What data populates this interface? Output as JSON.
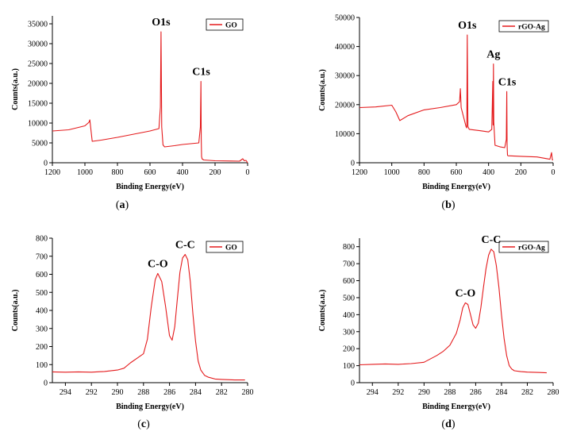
{
  "panels": [
    {
      "caption": "(a)",
      "caption_letter": "a"
    },
    {
      "caption": "(b)",
      "caption_letter": "b"
    },
    {
      "caption": "(c)",
      "caption_letter": "c"
    },
    {
      "caption": "(d)",
      "caption_letter": "d"
    }
  ],
  "colors": {
    "line": "#e41a1c",
    "axis": "#000000"
  },
  "chart_data": [
    {
      "type": "line",
      "xlabel": "Binding Energy(eV)",
      "ylabel": "Counts(a.u.)",
      "xlim": [
        1200,
        0
      ],
      "ylim": [
        0,
        37000
      ],
      "x_reversed": true,
      "x_ticks": [
        1200,
        1000,
        800,
        600,
        400,
        200,
        0
      ],
      "y_ticks": [
        0,
        5000,
        10000,
        15000,
        20000,
        25000,
        30000,
        35000
      ],
      "legend_position": "top-right",
      "series": [
        {
          "name": "GO",
          "x": [
            1200,
            1100,
            1000,
            975,
            970,
            955,
            900,
            800,
            700,
            600,
            545,
            536,
            532,
            528,
            520,
            510,
            450,
            400,
            300,
            290,
            287,
            285,
            283,
            280,
            270,
            200,
            100,
            50,
            30,
            20,
            10,
            0
          ],
          "y": [
            8000,
            8300,
            9300,
            10200,
            10800,
            5400,
            5700,
            6400,
            7200,
            8000,
            8600,
            14000,
            33000,
            9000,
            4500,
            4000,
            4300,
            4600,
            5000,
            9000,
            20500,
            6000,
            1600,
            1000,
            700,
            500,
            450,
            400,
            1000,
            500,
            600,
            0
          ]
        }
      ],
      "annotations": [
        {
          "text": "O1s",
          "x": 532,
          "y": 33000
        },
        {
          "text": "C1s",
          "x": 285,
          "y": 20500
        }
      ]
    },
    {
      "type": "line",
      "xlabel": "Binding Energy(eV)",
      "ylabel": "Counts(a.u.)",
      "xlim": [
        1200,
        0
      ],
      "ylim": [
        0,
        50000
      ],
      "x_reversed": true,
      "x_ticks": [
        1200,
        1000,
        800,
        600,
        400,
        200,
        0
      ],
      "y_ticks": [
        0,
        10000,
        20000,
        30000,
        40000,
        50000
      ],
      "legend_position": "top-right",
      "series": [
        {
          "name": "rGO-Ag",
          "x": [
            1200,
            1100,
            1000,
            975,
            950,
            900,
            800,
            700,
            600,
            580,
            575,
            570,
            540,
            535,
            532,
            528,
            520,
            450,
            400,
            380,
            374,
            372,
            370,
            368,
            366,
            360,
            330,
            300,
            290,
            287,
            285,
            283,
            280,
            200,
            100,
            20,
            10,
            5,
            0
          ],
          "y": [
            19000,
            19200,
            19800,
            17500,
            14500,
            16200,
            18200,
            19000,
            20000,
            21000,
            25500,
            19000,
            12500,
            12000,
            44000,
            12500,
            11500,
            11000,
            10600,
            11500,
            28000,
            13000,
            34000,
            14000,
            12000,
            6000,
            5500,
            5200,
            8000,
            24500,
            6000,
            2600,
            2400,
            2200,
            2000,
            1200,
            3500,
            1000,
            1000
          ]
        }
      ],
      "annotations": [
        {
          "text": "O1s",
          "x": 532,
          "y": 44000
        },
        {
          "text": "Ag",
          "x": 370,
          "y": 34000
        },
        {
          "text": "C1s",
          "x": 285,
          "y": 24500
        }
      ]
    },
    {
      "type": "line",
      "xlabel": "Binding Energy(eV)",
      "ylabel": "Counts(a.u.)",
      "xlim": [
        295,
        280
      ],
      "ylim": [
        0,
        800
      ],
      "x_reversed": true,
      "x_ticks": [
        294,
        292,
        290,
        288,
        286,
        284,
        282,
        280
      ],
      "y_ticks": [
        0,
        100,
        200,
        300,
        400,
        500,
        600,
        700,
        800
      ],
      "legend_position": "top-right",
      "series": [
        {
          "name": "GO",
          "x": [
            295,
            294,
            293,
            292,
            291,
            290,
            289.5,
            289,
            288.5,
            288,
            287.7,
            287.4,
            287.1,
            286.9,
            286.6,
            286.3,
            286.0,
            285.8,
            285.6,
            285.4,
            285.2,
            285.0,
            284.8,
            284.6,
            284.4,
            284.2,
            284.0,
            283.8,
            283.6,
            283.3,
            283.0,
            282.5,
            282.0,
            281.0,
            280.2
          ],
          "y": [
            60,
            58,
            60,
            58,
            62,
            70,
            80,
            110,
            135,
            160,
            240,
            420,
            570,
            605,
            560,
            420,
            260,
            235,
            310,
            460,
            610,
            690,
            710,
            680,
            560,
            380,
            230,
            120,
            70,
            40,
            30,
            20,
            18,
            15,
            15
          ]
        }
      ],
      "annotations": [
        {
          "text": "C-O",
          "x": 286.9,
          "y": 605
        },
        {
          "text": "C-C",
          "x": 284.8,
          "y": 710
        }
      ]
    },
    {
      "type": "line",
      "xlabel": "Binding Energy(eV)",
      "ylabel": "Counts(a.u.)",
      "xlim": [
        295,
        280
      ],
      "ylim": [
        0,
        850
      ],
      "x_reversed": true,
      "x_ticks": [
        294,
        292,
        290,
        288,
        286,
        284,
        282,
        280
      ],
      "y_ticks": [
        0,
        100,
        200,
        300,
        400,
        500,
        600,
        700,
        800
      ],
      "legend_position": "top-right",
      "series": [
        {
          "name": "rGO-Ag",
          "x": [
            295,
            294,
            293,
            292,
            291,
            290,
            289,
            288.5,
            288,
            287.5,
            287.2,
            287.0,
            286.8,
            286.6,
            286.4,
            286.2,
            286.0,
            285.8,
            285.6,
            285.4,
            285.2,
            285.0,
            284.8,
            284.6,
            284.4,
            284.2,
            284.0,
            283.8,
            283.6,
            283.4,
            283.2,
            283.0,
            282.5,
            282,
            281,
            280.5
          ],
          "y": [
            105,
            108,
            110,
            108,
            112,
            120,
            160,
            185,
            220,
            290,
            370,
            440,
            470,
            460,
            400,
            340,
            320,
            350,
            440,
            560,
            670,
            750,
            785,
            770,
            690,
            560,
            400,
            260,
            160,
            100,
            80,
            70,
            65,
            62,
            60,
            58
          ]
        }
      ],
      "annotations": [
        {
          "text": "C-O",
          "x": 286.8,
          "y": 470
        },
        {
          "text": "C-C",
          "x": 284.8,
          "y": 785
        }
      ]
    }
  ]
}
